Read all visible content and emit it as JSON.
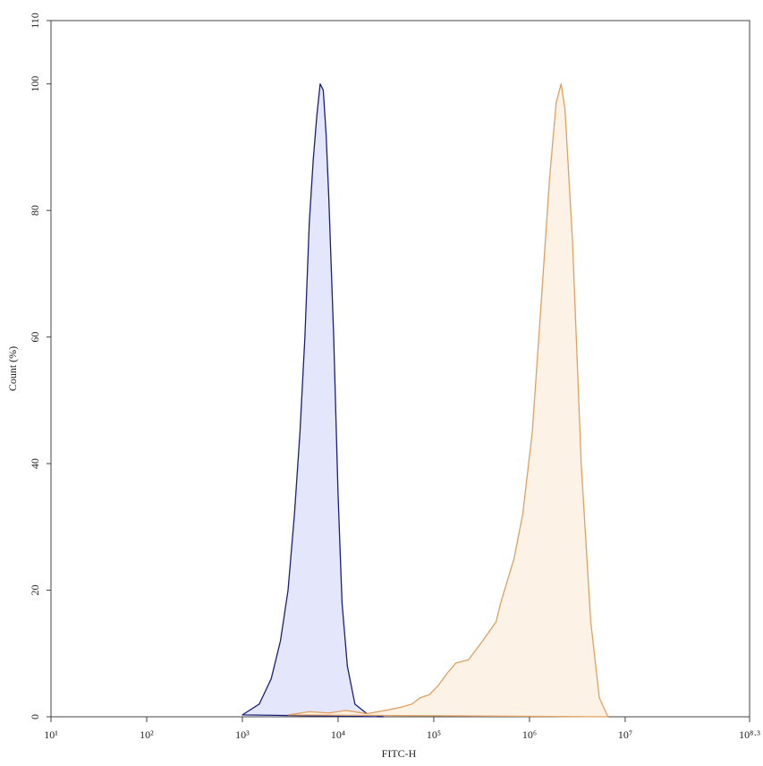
{
  "chart_data": {
    "type": "area",
    "xlabel": "FITC-H",
    "ylabel": "Count (%)",
    "log_x": true,
    "xlim": [
      10,
      199526231
    ],
    "xticks": [
      {
        "value": 10,
        "label": "10¹"
      },
      {
        "value": 100,
        "label": "10²"
      },
      {
        "value": 1000,
        "label": "10³"
      },
      {
        "value": 10000,
        "label": "10⁴"
      },
      {
        "value": 100000,
        "label": "10⁵"
      },
      {
        "value": 1000000,
        "label": "10⁶"
      },
      {
        "value": 10000000,
        "label": "10⁷"
      },
      {
        "value": 199526231,
        "label": "10⁸·³"
      }
    ],
    "ylim": [
      0,
      110
    ],
    "yticks": [
      0,
      20,
      40,
      60,
      80,
      100,
      110
    ],
    "series": [
      {
        "color": "#1a1f7a",
        "fill": "#e4e6fb",
        "x": [
          1000,
          1500,
          2000,
          2500,
          3000,
          3500,
          4000,
          4500,
          5000,
          5500,
          6000,
          6500,
          7000,
          7500,
          8000,
          9000,
          10000,
          11000,
          12500,
          15000,
          20000,
          30000
        ],
        "values": [
          0.3,
          2,
          6,
          12,
          20,
          32,
          45,
          60,
          78,
          88,
          95,
          100,
          99,
          92,
          82,
          60,
          35,
          18,
          8,
          2,
          0.5,
          0
        ]
      },
      {
        "color": "#e0a060",
        "fill": "#fdf2e6",
        "x": [
          3000,
          5000,
          8000,
          12000,
          20000,
          31000,
          45000,
          59000,
          72000,
          90000,
          112000,
          140000,
          170000,
          230000,
          324000,
          447000,
          500000,
          690000,
          850000,
          1070000,
          1320000,
          1620000,
          1900000,
          2140000,
          2350000,
          2820000,
          3470000,
          4370000,
          5370000,
          6600000
        ],
        "values": [
          0.3,
          0.8,
          0.6,
          1,
          0.5,
          1,
          1.5,
          2,
          3,
          3.5,
          5,
          7,
          8.5,
          9,
          12,
          15,
          18,
          25,
          32,
          45,
          65,
          85,
          97,
          100,
          96,
          75,
          40,
          15,
          3,
          0
        ]
      }
    ]
  }
}
